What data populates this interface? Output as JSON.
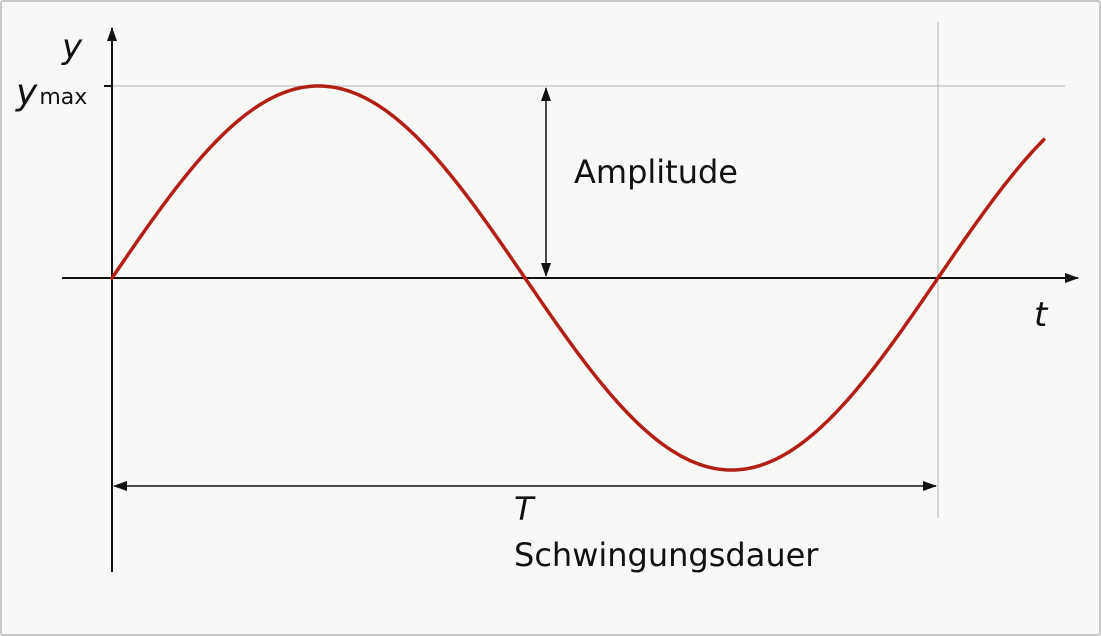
{
  "labels": {
    "y_axis": "y",
    "y_max_main": "y",
    "y_max_sub": "max",
    "t_axis": "t",
    "amplitude": "Amplitude",
    "period_symbol": "T",
    "period_name": "Schwingungsdauer"
  },
  "colors": {
    "curve": "#b21f17",
    "axes": "#111111",
    "guides": "#b5b5b5"
  },
  "curve": {
    "function": "sine",
    "periods_shown": 1.25
  }
}
